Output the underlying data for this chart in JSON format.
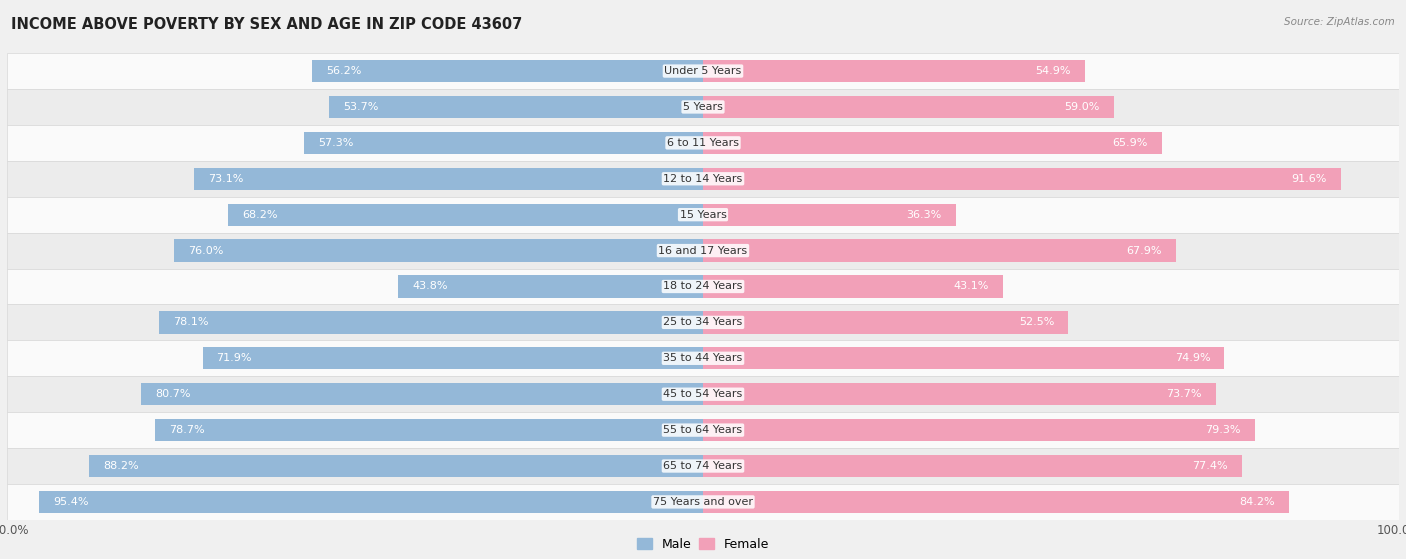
{
  "title": "INCOME ABOVE POVERTY BY SEX AND AGE IN ZIP CODE 43607",
  "source": "Source: ZipAtlas.com",
  "categories": [
    "Under 5 Years",
    "5 Years",
    "6 to 11 Years",
    "12 to 14 Years",
    "15 Years",
    "16 and 17 Years",
    "18 to 24 Years",
    "25 to 34 Years",
    "35 to 44 Years",
    "45 to 54 Years",
    "55 to 64 Years",
    "65 to 74 Years",
    "75 Years and over"
  ],
  "male_values": [
    56.2,
    53.7,
    57.3,
    73.1,
    68.2,
    76.0,
    43.8,
    78.1,
    71.9,
    80.7,
    78.7,
    88.2,
    95.4
  ],
  "female_values": [
    54.9,
    59.0,
    65.9,
    91.6,
    36.3,
    67.9,
    43.1,
    52.5,
    74.9,
    73.7,
    79.3,
    77.4,
    84.2
  ],
  "male_color": "#94B8D8",
  "female_color": "#F2A0B8",
  "male_label": "Male",
  "female_label": "Female",
  "max_value": 100.0,
  "background_color": "#f0f0f0",
  "row_even_color": "#fafafa",
  "row_odd_color": "#ececec",
  "title_fontsize": 10.5,
  "bar_height": 0.62,
  "value_fontsize": 8.0
}
